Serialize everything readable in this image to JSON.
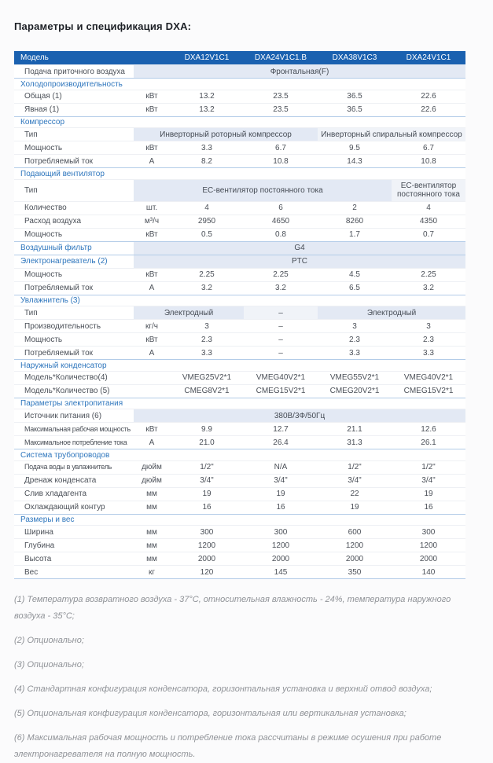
{
  "page": {
    "title": "Параметры и спецификация DXA:"
  },
  "colors": {
    "header_bg": "#1a61b0",
    "section_text": "#2e76bd",
    "span_bg": "#e3e9f4",
    "section_border": "#b3cce8"
  },
  "table": {
    "header": {
      "label": "Модель",
      "models": [
        "DXA12V1C1",
        "DXA24V1C1.B",
        "DXA38V1C3",
        "DXA24V1C1"
      ]
    },
    "rows": [
      {
        "type": "span",
        "label": "Подача приточного воздуха",
        "label_style": "data",
        "spans": [
          {
            "text": "Фронтальная(F)",
            "cols": 5,
            "hl": true
          }
        ]
      },
      {
        "type": "section",
        "label": "Холодопроизводительность"
      },
      {
        "type": "data",
        "label": "Общая (1)",
        "unit": "кВт",
        "values": [
          "13.2",
          "23.5",
          "36.5",
          "22.6"
        ]
      },
      {
        "type": "data",
        "label": "Явная (1)",
        "unit": "кВт",
        "values": [
          "13.2",
          "23.5",
          "36.5",
          "22.6"
        ]
      },
      {
        "type": "section",
        "label": "Компрессор"
      },
      {
        "type": "span",
        "label": "Тип",
        "label_style": "data",
        "spans": [
          {
            "text": "Инверторный роторный компрессор",
            "cols": 3,
            "hl": true
          },
          {
            "text": "Инверторный спиральный компрессор",
            "cols": 2,
            "hl": false
          }
        ]
      },
      {
        "type": "data",
        "label": "Мощность",
        "unit": "кВт",
        "values": [
          "3.3",
          "6.7",
          "9.5",
          "6.7"
        ]
      },
      {
        "type": "data",
        "label": "Потребляемый ток",
        "unit": "А",
        "values": [
          "8.2",
          "10.8",
          "14.3",
          "10.8"
        ]
      },
      {
        "type": "section",
        "label": "Подающий вентилятор"
      },
      {
        "type": "span",
        "label": "Тип",
        "label_style": "data",
        "spans": [
          {
            "text": "ЕС-вентилятор постоянного тока",
            "cols": 4,
            "hl": true
          },
          {
            "text": "ЕС-вентилятор постоянного тока",
            "cols": 1,
            "hl": false
          }
        ]
      },
      {
        "type": "data",
        "label": "Количество",
        "unit": "шт.",
        "values": [
          "4",
          "6",
          "2",
          "4"
        ]
      },
      {
        "type": "data",
        "label": "Расход воздуха",
        "unit": "м³/ч",
        "values": [
          "2950",
          "4650",
          "8260",
          "4350"
        ]
      },
      {
        "type": "data",
        "label": "Мощность",
        "unit": "кВт",
        "values": [
          "0.5",
          "0.8",
          "1.7",
          "0.7"
        ]
      },
      {
        "type": "span",
        "label": "Воздушный фильтр",
        "label_style": "section",
        "spans": [
          {
            "text": "G4",
            "cols": 5,
            "hl": true
          }
        ]
      },
      {
        "type": "span",
        "label": "Электронагреватель (2)",
        "label_style": "section",
        "spans": [
          {
            "text": "PTC",
            "cols": 5,
            "hl": true
          }
        ]
      },
      {
        "type": "data",
        "label": "Мощность",
        "unit": "кВт",
        "values": [
          "2.25",
          "2.25",
          "4.5",
          "2.25"
        ]
      },
      {
        "type": "data",
        "label": "Потребляемый ток",
        "unit": "А",
        "values": [
          "3.2",
          "3.2",
          "6.5",
          "3.2"
        ]
      },
      {
        "type": "section",
        "label": "Увлажнитель (3)"
      },
      {
        "type": "span",
        "label": "Тип",
        "label_style": "data",
        "spans": [
          {
            "text": "Электродный",
            "cols": 2,
            "hl": true
          },
          {
            "text": "–",
            "cols": 1,
            "hl": false
          },
          {
            "text": "Электродный",
            "cols": 2,
            "hl": true
          }
        ]
      },
      {
        "type": "data",
        "label": "Производительность",
        "unit": "кг/ч",
        "values": [
          "3",
          "–",
          "3",
          "3"
        ]
      },
      {
        "type": "data",
        "label": "Мощность",
        "unit": "кВт",
        "values": [
          "2.3",
          "–",
          "2.3",
          "2.3"
        ]
      },
      {
        "type": "data",
        "label": "Потребляемый ток",
        "unit": "А",
        "values": [
          "3.3",
          "–",
          "3.3",
          "3.3"
        ]
      },
      {
        "type": "section",
        "label": "Наружный конденсатор"
      },
      {
        "type": "data",
        "label": "Модель*Количество(4)",
        "unit": "",
        "values": [
          "VMEG25V2*1",
          "VMEG40V2*1",
          "VMEG55V2*1",
          "VMEG40V2*1"
        ]
      },
      {
        "type": "data",
        "label": "Модель*Количество (5)",
        "unit": "",
        "values": [
          "CMEG8V2*1",
          "CMEG15V2*1",
          "CMEG20V2*1",
          "CMEG15V2*1"
        ]
      },
      {
        "type": "section",
        "label": "Параметры электропитания"
      },
      {
        "type": "span",
        "label": "Источник питания (6)",
        "label_style": "data",
        "spans": [
          {
            "text": "380В/3Ф/50Гц",
            "cols": 5,
            "hl": true
          }
        ]
      },
      {
        "type": "data",
        "label": "Максимальная рабочая мощность",
        "unit": "кВт",
        "values": [
          "9.9",
          "12.7",
          "21.1",
          "12.6"
        ],
        "tight": true
      },
      {
        "type": "data",
        "label": "Максимальное потребление тока",
        "unit": "А",
        "values": [
          "21.0",
          "26.4",
          "31.3",
          "26.1"
        ],
        "tight": true
      },
      {
        "type": "section",
        "label": "Система трубопроводов"
      },
      {
        "type": "data",
        "label": "Подача воды в увлажнитель",
        "unit": "дюйм",
        "values": [
          "1/2\"",
          "N/A",
          "1/2\"",
          "1/2\""
        ],
        "tight": true
      },
      {
        "type": "data",
        "label": "Дренаж конденсата",
        "unit": "дюйм",
        "values": [
          "3/4\"",
          "3/4\"",
          "3/4\"",
          "3/4\""
        ]
      },
      {
        "type": "data",
        "label": "Слив хладагента",
        "unit": "мм",
        "values": [
          "19",
          "19",
          "22",
          "19"
        ]
      },
      {
        "type": "data",
        "label": "Охлаждающий контур",
        "unit": "мм",
        "values": [
          "16",
          "16",
          "19",
          "16"
        ]
      },
      {
        "type": "section",
        "label": "Размеры и вес"
      },
      {
        "type": "data",
        "label": "Ширина",
        "unit": "мм",
        "values": [
          "300",
          "300",
          "600",
          "300"
        ]
      },
      {
        "type": "data",
        "label": "Глубина",
        "unit": "мм",
        "values": [
          "1200",
          "1200",
          "1200",
          "1200"
        ]
      },
      {
        "type": "data",
        "label": "Высота",
        "unit": "мм",
        "values": [
          "2000",
          "2000",
          "2000",
          "2000"
        ]
      },
      {
        "type": "data",
        "label": "Вес",
        "unit": "кг",
        "values": [
          "120",
          "145",
          "350",
          "140"
        ]
      }
    ]
  },
  "footnotes": [
    "(1) Температура возвратного воздуха - 37°C, относительная влажность - 24%, температура наружного воздуха - 35°C;",
    "(2) Опционально;",
    "(3) Опционально;",
    "(4) Стандартная конфигурация конденсатора, горизонтальная установка и верхний отвод воздуха;",
    "(5) Опциональная конфигурация конденсатора, горизонтальная или вертикальная установка;",
    "(6) Максимальная рабочая мощность и потребление тока рассчитаны в режиме осушения при работе электронагревателя на полную мощность."
  ]
}
